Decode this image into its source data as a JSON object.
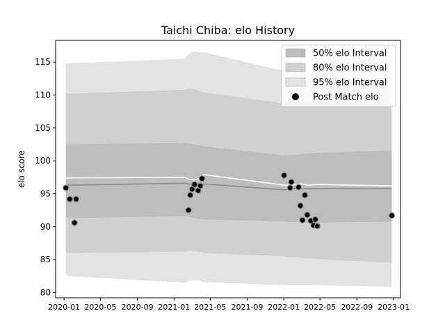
{
  "chart_data": {
    "type": "scatter",
    "title": "Taichi Chiba: elo History",
    "xlabel": "",
    "ylabel": "elo score",
    "xlim": [
      "2019-12-04",
      "2023-01-24"
    ],
    "ylim": [
      79.2,
      118.3
    ],
    "x_ticks": [
      "2020-01",
      "2020-05",
      "2020-09",
      "2021-01",
      "2021-05",
      "2021-09",
      "2022-01",
      "2022-05",
      "2022-09",
      "2023-01"
    ],
    "y_ticks": [
      80,
      85,
      90,
      95,
      100,
      105,
      110,
      115
    ],
    "legend_position": "top-right",
    "series": [
      {
        "name": "95% elo Interval",
        "kind": "band",
        "color": "#e3e3e3",
        "x": [
          "2020-01-07",
          "2020-01-15",
          "2021-02-05",
          "2021-02-20",
          "2021-03-10",
          "2021-03-25",
          "2021-04-10",
          "2022-01-05",
          "2022-01-25",
          "2022-02-25",
          "2022-03-25",
          "2022-04-20",
          "2022-12-26"
        ],
        "upper": [
          114.8,
          114.8,
          115.5,
          116.3,
          116.6,
          116.5,
          116.5,
          113.6,
          113.5,
          113.6,
          113.6,
          113.6,
          113.7
        ],
        "lower": [
          82.8,
          82.5,
          81.5,
          81.8,
          81.9,
          81.9,
          81.6,
          81.1,
          81.1,
          81.1,
          81.1,
          81.1,
          80.9
        ]
      },
      {
        "name": "80% elo Interval",
        "kind": "band",
        "color": "#d0d0d0",
        "x": [
          "2020-01-07",
          "2020-01-15",
          "2021-02-05",
          "2021-02-20",
          "2021-03-10",
          "2021-03-25",
          "2021-04-10",
          "2022-01-05",
          "2022-01-25",
          "2022-02-25",
          "2022-03-25",
          "2022-04-20",
          "2022-12-26"
        ],
        "upper": [
          110.3,
          110.2,
          110.8,
          111.0,
          110.9,
          110.6,
          110.4,
          108.7,
          108.8,
          108.8,
          108.8,
          108.8,
          108.6
        ],
        "lower": [
          86.2,
          86.0,
          86.2,
          86.4,
          86.3,
          86.2,
          86.0,
          85.5,
          85.3,
          85.3,
          85.2,
          85.1,
          84.5
        ]
      },
      {
        "name": "50% elo Interval",
        "kind": "band",
        "color": "#bdbdbd",
        "x": [
          "2020-01-07",
          "2020-01-15",
          "2021-02-05",
          "2021-02-20",
          "2021-03-10",
          "2021-03-25",
          "2021-04-10",
          "2022-01-05",
          "2022-01-25",
          "2022-02-25",
          "2022-03-25",
          "2022-04-20",
          "2022-12-26"
        ],
        "upper": [
          102.6,
          102.5,
          102.7,
          102.6,
          102.5,
          102.3,
          102.2,
          100.8,
          100.9,
          101.0,
          101.1,
          101.2,
          101.6
        ],
        "lower": [
          91.5,
          91.3,
          91.6,
          91.5,
          91.3,
          91.2,
          91.1,
          90.8,
          90.7,
          90.7,
          90.6,
          90.6,
          90.8
        ]
      },
      {
        "kind": "line",
        "color": "#8a8a8a",
        "x": [
          "2020-01-07",
          "2020-01-15",
          "2021-02-05",
          "2021-02-20",
          "2021-03-10",
          "2021-03-25",
          "2021-04-10",
          "2022-01-05",
          "2022-01-25",
          "2022-02-25",
          "2022-03-25",
          "2022-04-20",
          "2022-12-26"
        ],
        "values": [
          96.3,
          96.3,
          96.6,
          96.5,
          96.4,
          96.2,
          96.5,
          95.6,
          95.8,
          95.8,
          95.8,
          95.8,
          95.8
        ]
      },
      {
        "kind": "line",
        "color": "#ffffff",
        "x": [
          "2020-01-07",
          "2020-01-15",
          "2021-02-05",
          "2021-02-20",
          "2021-03-10",
          "2021-03-25",
          "2021-04-10",
          "2022-01-05",
          "2022-01-25",
          "2022-02-25",
          "2022-03-25",
          "2022-04-20",
          "2022-12-26"
        ],
        "values": [
          97.4,
          97.4,
          97.5,
          97.2,
          97.1,
          97.3,
          97.9,
          96.3,
          96.3,
          96.5,
          96.3,
          96.4,
          96.2
        ]
      },
      {
        "name": "Post Match elo",
        "kind": "scatter",
        "color": "#000000",
        "x": [
          "2020-01-07",
          "2020-01-20",
          "2020-02-05",
          "2020-02-10",
          "2021-02-18",
          "2021-02-24",
          "2021-03-02",
          "2021-03-10",
          "2021-03-22",
          "2021-03-29",
          "2021-04-04",
          "2022-01-02",
          "2022-01-22",
          "2022-01-26",
          "2022-02-19",
          "2022-02-25",
          "2022-03-04",
          "2022-03-12",
          "2022-03-20",
          "2022-04-01",
          "2022-04-10",
          "2022-04-16",
          "2022-04-22",
          "2022-12-26"
        ],
        "values": [
          95.9,
          94.2,
          90.6,
          94.2,
          92.5,
          94.8,
          95.7,
          96.4,
          95.5,
          96.2,
          97.3,
          97.8,
          95.9,
          96.8,
          96.0,
          93.2,
          91.0,
          94.8,
          91.8,
          90.9,
          90.2,
          91.1,
          90.1,
          91.7
        ]
      }
    ]
  }
}
